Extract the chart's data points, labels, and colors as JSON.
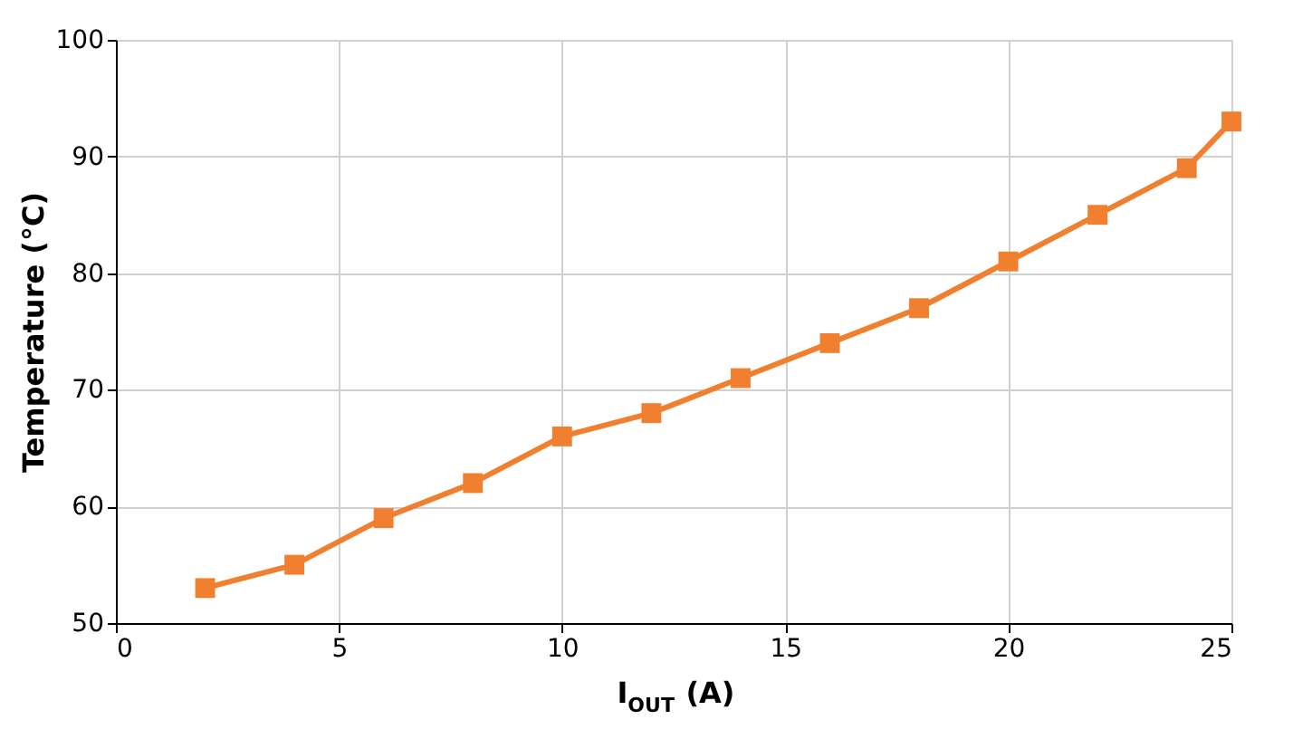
{
  "chart_data": {
    "type": "line",
    "xlabel": "I$_{OUT}$ (A)",
    "ylabel": "Temperature (°C)",
    "x": [
      2,
      4,
      6,
      8,
      10,
      12,
      14,
      16,
      18,
      20,
      22,
      24,
      25
    ],
    "series": [
      {
        "color": "#f0802f",
        "values": [
          53,
          55,
          59,
          62,
          66,
          68,
          71,
          74,
          77,
          81,
          85,
          89,
          93
        ]
      }
    ],
    "xlim": [
      0,
      25
    ],
    "xticks": [
      0,
      5,
      10,
      15,
      20,
      25
    ],
    "ylim": [
      50,
      100
    ],
    "yticks": [
      50,
      60,
      70,
      80,
      90,
      100
    ],
    "grid": true,
    "marker": "square",
    "line_style": "solid"
  }
}
